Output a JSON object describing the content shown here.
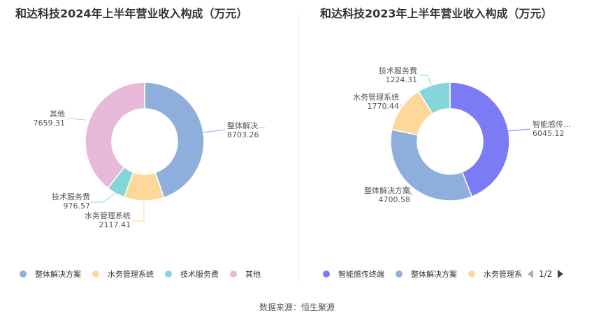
{
  "chart_data": [
    {
      "type": "pie",
      "title": "和达科技2024年上半年营业收入构成（万元）",
      "categories": [
        "整体解决方案",
        "水务管理系统",
        "技术服务费",
        "其他"
      ],
      "values": [
        8703.26,
        2117.41,
        976.57,
        7659.31
      ],
      "labels": [
        "整体解决...",
        "水务管理系统",
        "技术服务费",
        "其他"
      ],
      "value_labels": [
        "8703.26",
        "2117.41",
        "976.57",
        "7659.31"
      ],
      "colors": [
        "#8eaedb",
        "#fdd89a",
        "#85d6d8",
        "#e8b8d8"
      ],
      "legend": [
        "整体解决方案",
        "水务管理系统",
        "技术服务费",
        "其他"
      ],
      "legend_placement": "bottom"
    },
    {
      "type": "pie",
      "title": "和达科技2023年上半年营业收入构成（万元）",
      "categories": [
        "智能感传终端",
        "整体解决方案",
        "水务管理系统",
        "技术服务费"
      ],
      "values": [
        6045.12,
        4700.58,
        1770.44,
        1224.31
      ],
      "labels": [
        "智能感传...",
        "整体解决方案",
        "水务管理系统",
        "技术服务费"
      ],
      "value_labels": [
        "6045.12",
        "4700.58",
        "1770.44",
        "1224.31"
      ],
      "colors": [
        "#7b7cf5",
        "#8eaedb",
        "#fdd89a",
        "#85d6d8"
      ],
      "legend": [
        "智能感传终端",
        "整体解决方案",
        "水务管理系"
      ],
      "legend_placement": "bottom",
      "legend_page": "1/2"
    }
  ],
  "source": "数据来源：恒生聚源"
}
